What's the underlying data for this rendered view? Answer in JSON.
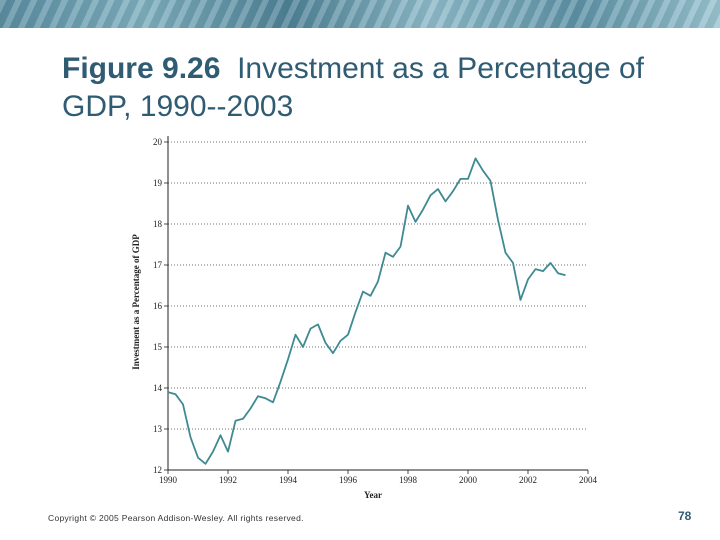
{
  "slide": {
    "title_bold": "Figure 9.26",
    "title_rest": "Investment as a Percentage of GDP, 1990--2003",
    "footer": "Copyright © 2005 Pearson Addison-Wesley. All rights reserved.",
    "page_number": "78"
  },
  "chart_data": {
    "type": "line",
    "title": "Figure 9.26 Investment as a Percentage of GDP, 1990--2003",
    "xlabel": "Year",
    "ylabel": "Investment as a Percentage of GDP",
    "xlim": [
      1990,
      2004
    ],
    "ylim": [
      12,
      20
    ],
    "xticks": [
      1990,
      1992,
      1994,
      1996,
      1998,
      2000,
      2002,
      2004
    ],
    "yticks": [
      12,
      13,
      14,
      15,
      16,
      17,
      18,
      19,
      20
    ],
    "grid": "horizontal dotted",
    "series": [
      {
        "name": "Investment as a Percentage of GDP",
        "x": [
          1990.0,
          1990.25,
          1990.5,
          1990.75,
          1991.0,
          1991.25,
          1991.5,
          1991.75,
          1992.0,
          1992.25,
          1992.5,
          1992.75,
          1993.0,
          1993.25,
          1993.5,
          1993.75,
          1994.0,
          1994.25,
          1994.5,
          1994.75,
          1995.0,
          1995.25,
          1995.5,
          1995.75,
          1996.0,
          1996.25,
          1996.5,
          1996.75,
          1997.0,
          1997.25,
          1997.5,
          1997.75,
          1998.0,
          1998.25,
          1998.5,
          1998.75,
          1999.0,
          1999.25,
          1999.5,
          1999.75,
          2000.0,
          2000.25,
          2000.5,
          2000.75,
          2001.0,
          2001.25,
          2001.5,
          2001.75,
          2002.0,
          2002.25,
          2002.5,
          2002.75,
          2003.0,
          2003.25
        ],
        "values": [
          13.9,
          13.85,
          13.6,
          12.8,
          12.3,
          12.15,
          12.45,
          12.85,
          12.45,
          13.2,
          13.25,
          13.5,
          13.8,
          13.75,
          13.65,
          14.15,
          14.7,
          15.3,
          15.0,
          15.45,
          15.55,
          15.1,
          14.85,
          15.15,
          15.3,
          15.85,
          16.35,
          16.25,
          16.6,
          17.3,
          17.2,
          17.45,
          18.45,
          18.05,
          18.35,
          18.7,
          18.85,
          18.55,
          18.8,
          19.1,
          19.1,
          19.6,
          19.3,
          19.05,
          18.1,
          17.3,
          17.05,
          16.15,
          16.65,
          16.9,
          16.85,
          17.05,
          16.8,
          16.75
        ]
      }
    ]
  }
}
